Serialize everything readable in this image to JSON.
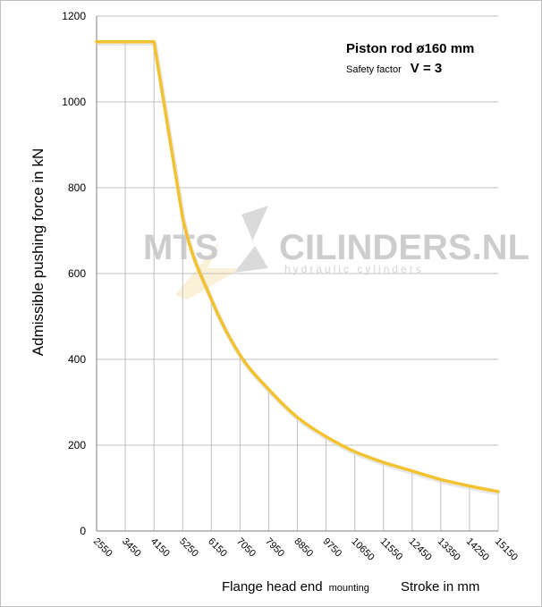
{
  "chart_data": {
    "type": "line",
    "title": "",
    "xlabel": "Flange head end",
    "xlabel_suffix": "mounting",
    "xlabel_right": "Stroke in mm",
    "ylabel": "Admissible pushing  force in kN",
    "ylim": [
      0,
      1200
    ],
    "yticks": [
      0,
      200,
      400,
      600,
      800,
      1000,
      1200
    ],
    "categories": [
      "2550",
      "3450",
      "4150",
      "5250",
      "6150",
      "7050",
      "7950",
      "8850",
      "9750",
      "10650",
      "11550",
      "12450",
      "13350",
      "14250",
      "15150"
    ],
    "series": [
      {
        "color": "#f2c230",
        "x_index": [
          0,
          1,
          2,
          3,
          4,
          5,
          6,
          7,
          8,
          9,
          10,
          11,
          12,
          13,
          14
        ],
        "values": [
          1140,
          1140,
          1140,
          730,
          540,
          410,
          330,
          265,
          220,
          185,
          160,
          140,
          120,
          105,
          92
        ]
      }
    ],
    "grid": true,
    "annotations": {
      "line1": "Piston rod ø160 mm",
      "line2_small": "Safety factor",
      "line2_big": "V = 3"
    }
  },
  "watermark": {
    "brand_left": "MTS",
    "brand_right": "CILINDERS.NL",
    "tagline": "hydraulic cylinders"
  },
  "colors": {
    "line": "#f2c230",
    "grid": "#c0c0c0",
    "axis": "#808080"
  }
}
